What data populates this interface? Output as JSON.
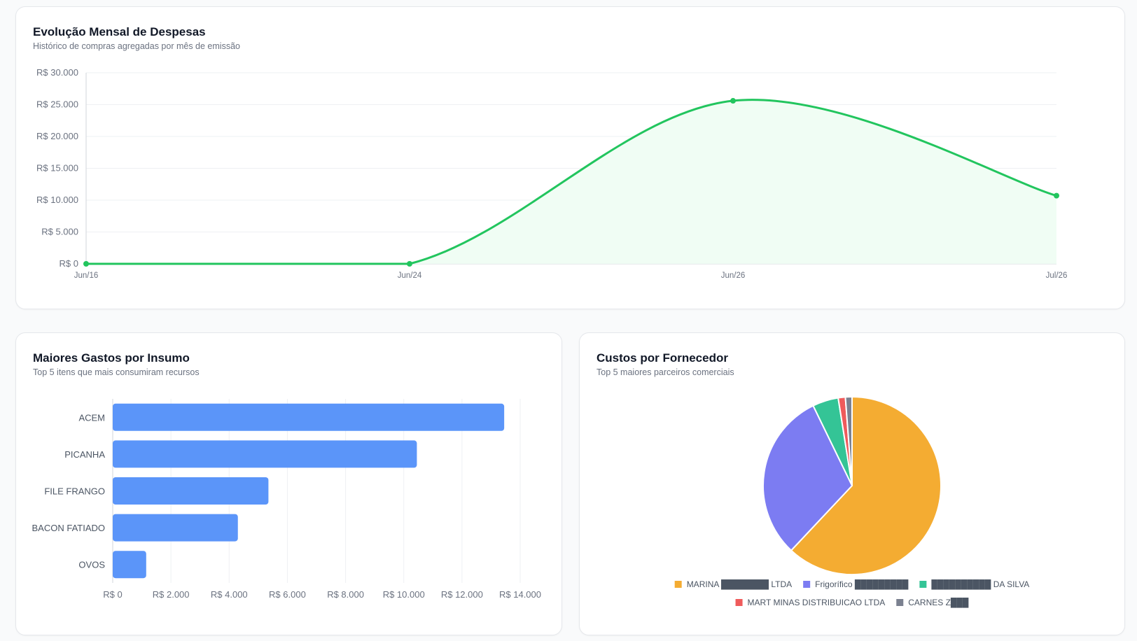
{
  "line_card": {
    "title": "Evolução Mensal de Despesas",
    "subtitle": "Histórico de compras agregadas por mês de emissão"
  },
  "bar_card": {
    "title": "Maiores Gastos por Insumo",
    "subtitle": "Top 5 itens que mais consumiram recursos"
  },
  "pie_card": {
    "title": "Custos por Fornecedor",
    "subtitle": "Top 5 maiores parceiros comerciais"
  },
  "chart_data": [
    {
      "type": "area",
      "x": [
        "Jun/16",
        "Jun/24",
        "Jun/26",
        "Jul/26"
      ],
      "y": [
        0,
        0,
        25600,
        10700
      ],
      "y_ticks": [
        "R$ 0",
        "R$ 5.000",
        "R$ 10.000",
        "R$ 15.000",
        "R$ 20.000",
        "R$ 25.000",
        "R$ 30.000"
      ],
      "ylim": [
        0,
        30000
      ],
      "color": "#22c55e",
      "fill": "#f0fdf4",
      "grid": true
    },
    {
      "type": "bar",
      "orientation": "horizontal",
      "categories": [
        "ACEM",
        "PICANHA",
        "FILE FRANGO",
        "BACON FATIADO",
        "OVOS"
      ],
      "values": [
        13450,
        10450,
        5350,
        4300,
        1150
      ],
      "x_ticks": [
        "R$ 0",
        "R$ 2.000",
        "R$ 4.000",
        "R$ 6.000",
        "R$ 8.000",
        "R$ 10.000",
        "R$ 12.000",
        "R$ 14.000"
      ],
      "xlim": [
        0,
        14000
      ],
      "color": "#5b95f9",
      "grid": true
    },
    {
      "type": "pie",
      "labels": [
        "MARINA ████████ LTDA",
        "Frigorífico █████████",
        "██████████ DA SILVA",
        "MART MINAS DISTRIBUICAO LTDA",
        "CARNES Z███"
      ],
      "values": [
        62.0,
        30.8,
        4.7,
        1.3,
        1.2
      ],
      "colors": [
        "#f4ac32",
        "#7c7cf2",
        "#34c496",
        "#ef5b5b",
        "#7b8190"
      ],
      "legend_position": "bottom"
    }
  ]
}
